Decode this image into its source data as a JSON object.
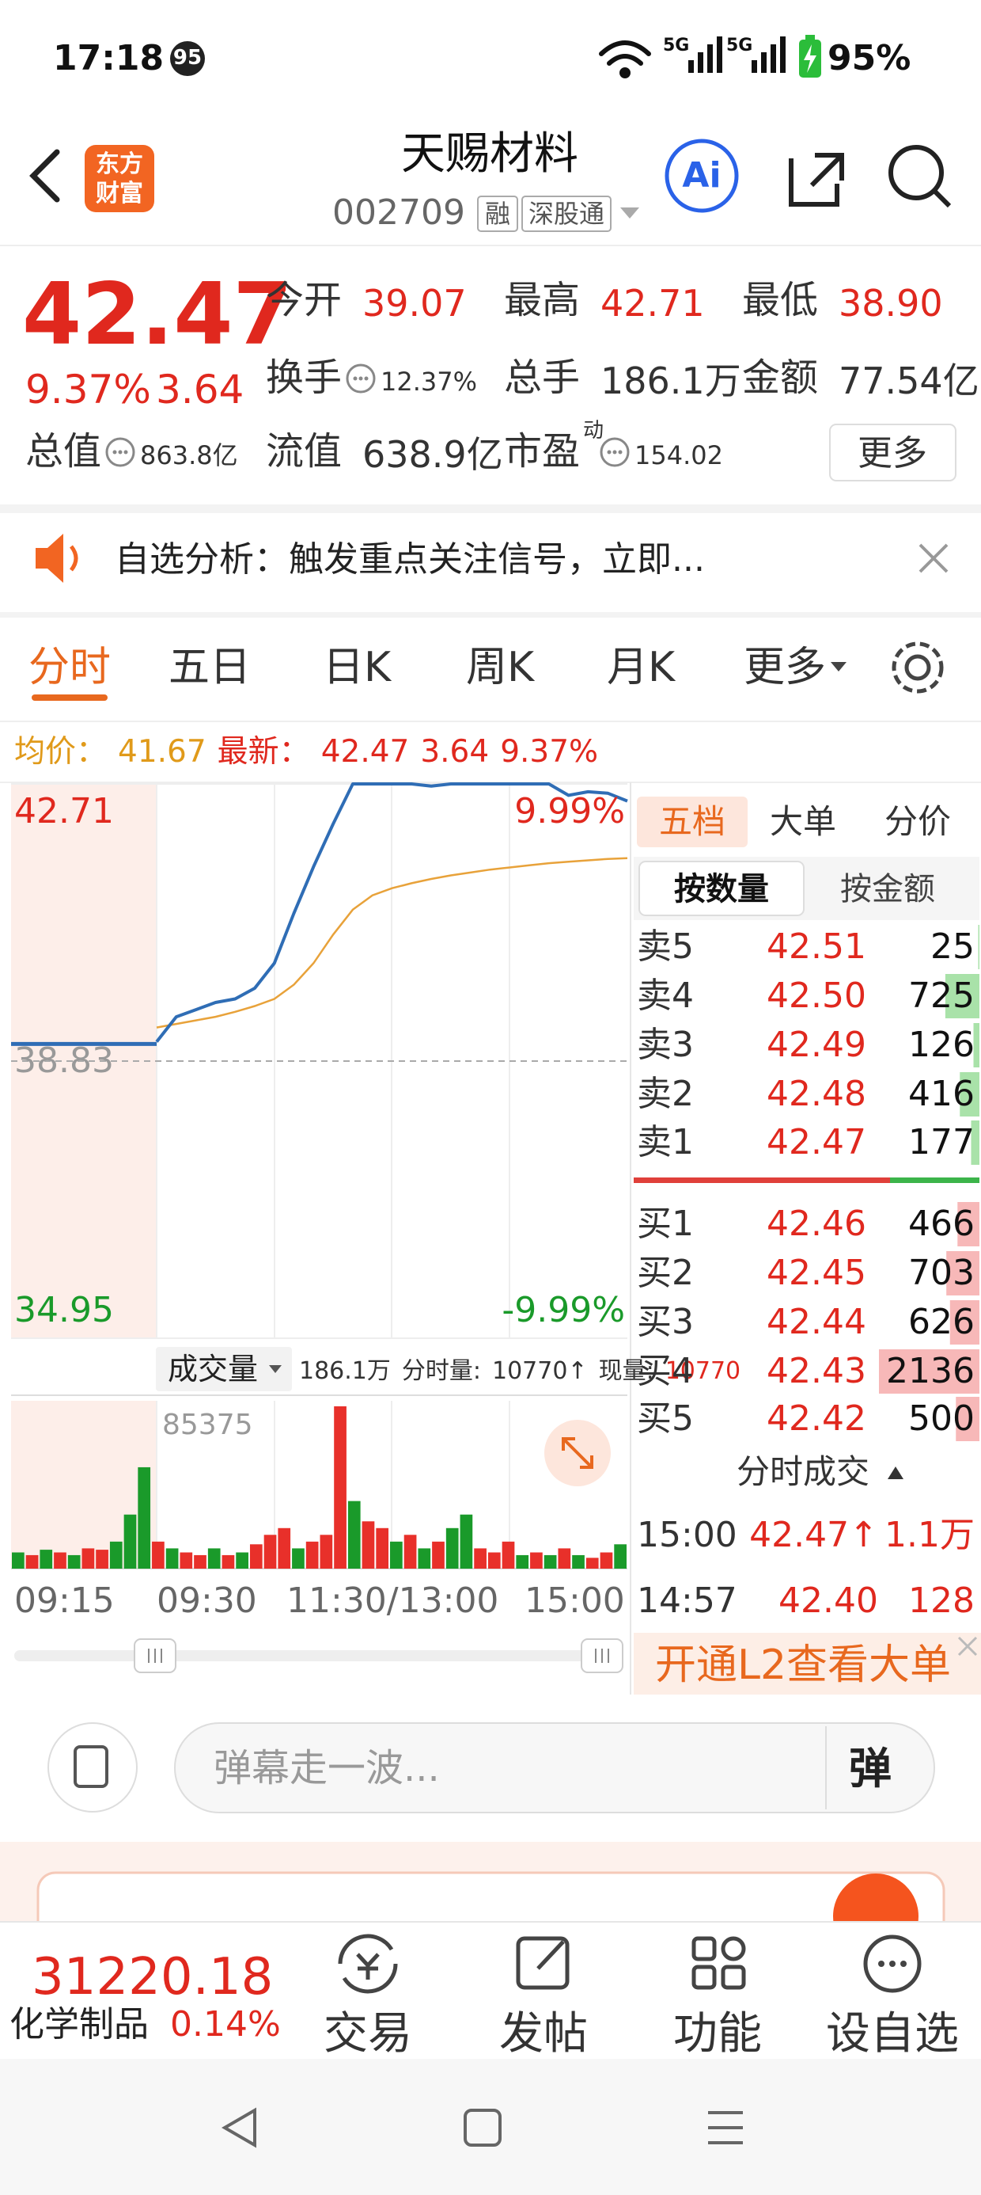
{
  "status_bar": {
    "time": "17:18",
    "badge": "95",
    "signal_1": "5G",
    "signal_2": "5G",
    "battery": "95%"
  },
  "header": {
    "logo": [
      "东方",
      "财富"
    ],
    "title": "天赐材料",
    "code": "002709",
    "tags": [
      "融",
      "深股通"
    ],
    "ai": "Ai"
  },
  "quote": {
    "price": "42.47",
    "change_pct": "9.37%",
    "change": "3.64",
    "stats": [
      {
        "label": "今开",
        "value": "39.07"
      },
      {
        "label": "最高",
        "value": "42.71"
      },
      {
        "label": "最低",
        "value": "38.90"
      },
      {
        "label": "换手",
        "value": "12.37%"
      },
      {
        "label": "总手",
        "value": "186.1万"
      },
      {
        "label": "金额",
        "value": "77.54亿"
      },
      {
        "label": "总值",
        "value": "863.8亿"
      },
      {
        "label": "流值",
        "value": "638.9亿"
      },
      {
        "label": "市盈",
        "sup": "动",
        "value": "154.02"
      }
    ],
    "more": "更多"
  },
  "notice": {
    "text": "自选分析：触发重点关注信号，立即..."
  },
  "tabs": {
    "items": [
      "分时",
      "五日",
      "日K",
      "周K",
      "月K",
      "更多"
    ],
    "active": 0
  },
  "summary": {
    "avg_label": "均价：",
    "avg": "41.67",
    "latest_label": "最新：",
    "latest": "42.47",
    "change": "3.64",
    "change_pct": "9.37%"
  },
  "intraday": {
    "ylim": [
      34.95,
      42.71
    ],
    "yticks": [
      {
        "value": 42.71,
        "label": "42.71"
      },
      {
        "value": 38.83,
        "label": "38.83"
      },
      {
        "value": 34.95,
        "label": "34.95"
      }
    ],
    "pct_top": "9.99%",
    "pct_bottom": "-9.99%",
    "premarket": [
      39.07,
      39.07
    ],
    "price": [
      39.1,
      39.45,
      39.55,
      39.65,
      39.7,
      39.85,
      40.2,
      40.9,
      41.55,
      42.15,
      42.71,
      42.71,
      42.71,
      42.71,
      42.68,
      42.71,
      42.71,
      42.71,
      42.71,
      42.71,
      42.71,
      42.55,
      42.6,
      42.58,
      42.47
    ],
    "avg": [
      39.3,
      39.35,
      39.4,
      39.45,
      39.52,
      39.6,
      39.7,
      39.9,
      40.2,
      40.6,
      40.95,
      41.15,
      41.25,
      41.32,
      41.38,
      41.43,
      41.47,
      41.51,
      41.54,
      41.57,
      41.6,
      41.62,
      41.64,
      41.66,
      41.67
    ],
    "price_color": "#2f6db5",
    "avg_color": "#e8a23a"
  },
  "volume": {
    "title": "成交量",
    "total": "186.1万",
    "minute_label": "分时量:",
    "minute": "10770↑",
    "current_label": "现量:",
    "current": "10770",
    "max": 85375,
    "values": [
      8530,
      7110,
      9950,
      8530,
      7110,
      10660,
      9950,
      14220,
      28440,
      53330,
      14220,
      10660,
      8530,
      7110,
      10660,
      7110,
      8530,
      12800,
      17780,
      21330,
      10660,
      14220,
      17780,
      85375,
      35550,
      24880,
      21330,
      14220,
      17780,
      10660,
      14220,
      21330,
      28440,
      10660,
      8530,
      14220,
      7110,
      8530,
      7110,
      10660,
      7110,
      5690,
      8530,
      12800
    ],
    "colors": [
      "#1a9a2a",
      "#e8302a",
      "#1a9a2a",
      "#e8302a",
      "#1a9a2a",
      "#e8302a",
      "#e8302a",
      "#1a9a2a",
      "#1a9a2a",
      "#1a9a2a",
      "#e8302a",
      "#1a9a2a",
      "#e8302a",
      "#e8302a",
      "#1a9a2a",
      "#e8302a",
      "#1a9a2a",
      "#e8302a",
      "#e8302a",
      "#e8302a",
      "#1a9a2a",
      "#e8302a",
      "#e8302a",
      "#e8302a",
      "#1a9a2a",
      "#e8302a",
      "#e8302a",
      "#1a9a2a",
      "#e8302a",
      "#1a9a2a",
      "#e8302a",
      "#1a9a2a",
      "#1a9a2a",
      "#e8302a",
      "#e8302a",
      "#e8302a",
      "#1a9a2a",
      "#e8302a",
      "#1a9a2a",
      "#e8302a",
      "#1a9a2a",
      "#e8302a",
      "#e8302a",
      "#1a9a2a"
    ]
  },
  "time_axis": [
    "09:15",
    "09:30",
    "11:30/13:00",
    "15:00"
  ],
  "order_book": {
    "tabs": [
      "五档",
      "大单",
      "分价"
    ],
    "subtabs": [
      "按数量",
      "按金额"
    ],
    "asks": [
      {
        "label": "卖5",
        "price": "42.51",
        "volume": 25
      },
      {
        "label": "卖4",
        "price": "42.50",
        "volume": 725
      },
      {
        "label": "卖3",
        "price": "42.49",
        "volume": 126
      },
      {
        "label": "卖2",
        "price": "42.48",
        "volume": 416
      },
      {
        "label": "卖1",
        "price": "42.47",
        "volume": 177
      }
    ],
    "bids": [
      {
        "label": "买1",
        "price": "42.46",
        "volume": 466
      },
      {
        "label": "买2",
        "price": "42.45",
        "volume": 703
      },
      {
        "label": "买3",
        "price": "42.44",
        "volume": 626
      },
      {
        "label": "买4",
        "price": "42.43",
        "volume": 2136
      },
      {
        "label": "买5",
        "price": "42.42",
        "volume": 500
      }
    ]
  },
  "trades": {
    "title": "分时成交",
    "rows": [
      {
        "time": "15:00",
        "price": "42.47↑",
        "volume": "1.1万"
      },
      {
        "time": "14:57",
        "price": "42.40",
        "volume": "128"
      }
    ]
  },
  "l2_banner": "开通L2查看大单",
  "comment": {
    "placeholder": "弹幕走一波...",
    "button": "弹"
  },
  "bottom_bar": {
    "index_value": "31220.18",
    "index_name": "化学制品",
    "index_change": "0.14%",
    "actions": [
      "交易",
      "发帖",
      "功能",
      "设自选"
    ]
  }
}
